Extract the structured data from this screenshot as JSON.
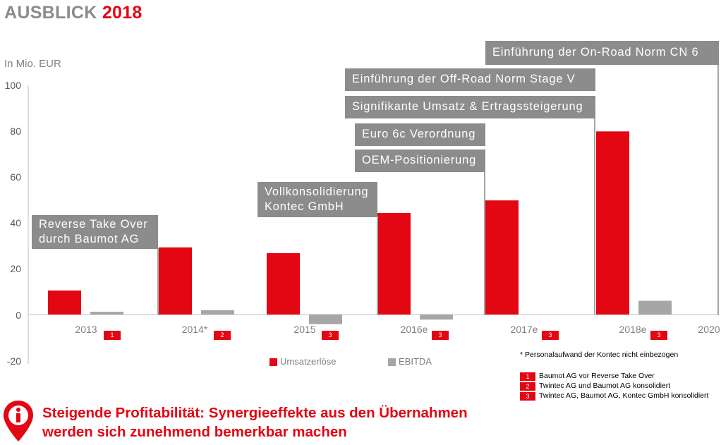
{
  "header": {
    "title_prefix": "AUSBLICK",
    "title_year": "2018"
  },
  "chart_data": {
    "type": "bar",
    "unit_label": "In Mio. EUR",
    "ylim": [
      -20,
      100
    ],
    "yticks": [
      "100",
      "80",
      "60",
      "40",
      "20",
      "0",
      "-20"
    ],
    "ytick_values": [
      100,
      80,
      60,
      40,
      20,
      0,
      -20
    ],
    "categories": [
      "2013",
      "2014*",
      "2015",
      "2016e",
      "2017e",
      "2018e",
      "2020"
    ],
    "category_badges": [
      "1",
      "2",
      "3",
      "3",
      "3",
      "3",
      ""
    ],
    "series": [
      {
        "name": "Umsatzerlöse",
        "color": "#e30613",
        "values": [
          10.5,
          29.3,
          26.8,
          44.3,
          49.8,
          79.9,
          null
        ]
      },
      {
        "name": "EBITDA",
        "color": "#a6a6a6",
        "values": [
          1.2,
          1.9,
          -4.2,
          -2.2,
          null,
          6.0,
          null
        ]
      }
    ],
    "annotations": [
      {
        "category": "2014*",
        "lines": [
          "Reverse Take Over",
          "durch Baumot AG"
        ]
      },
      {
        "category": "2016e",
        "lines": [
          "Vollkonsolidierung",
          "Kontec GmbH"
        ]
      },
      {
        "category": "2017e",
        "lines": [
          "OEM-Positionierung"
        ]
      },
      {
        "category": "2017e",
        "lines": [
          "Euro 6c Verordnung"
        ]
      },
      {
        "category": "2018e",
        "lines": [
          "Signifikante Umsatz & Ertragssteigerung"
        ]
      },
      {
        "category": "2018e",
        "lines": [
          "Einführung der Off-Road Norm Stage V"
        ]
      },
      {
        "category": "2020",
        "lines": [
          "Einführung der On-Road Norm CN 6"
        ]
      }
    ]
  },
  "legend": {
    "revenue": "Umsatzerlöse",
    "ebitda": "EBITDA",
    "revenue_color": "#e30613",
    "ebitda_color": "#a6a6a6"
  },
  "notes": {
    "asterisk": "*",
    "personnel": "Personalaufwand der Kontec nicht einbezogen",
    "badges": [
      {
        "num": "1",
        "text": "Baumot AG vor Reverse Take Over"
      },
      {
        "num": "2",
        "text": "Twintec AG und Baumot AG konsolidiert"
      },
      {
        "num": "3",
        "text": "Twintec AG, Baumot AG, Kontec GmbH konsolidiert"
      }
    ]
  },
  "footer": {
    "icon": "info-icon",
    "line1": "Steigende Profitabilität: Synergieeffekte aus den Übernahmen",
    "line2": "werden sich zunehmend bemerkbar machen"
  }
}
